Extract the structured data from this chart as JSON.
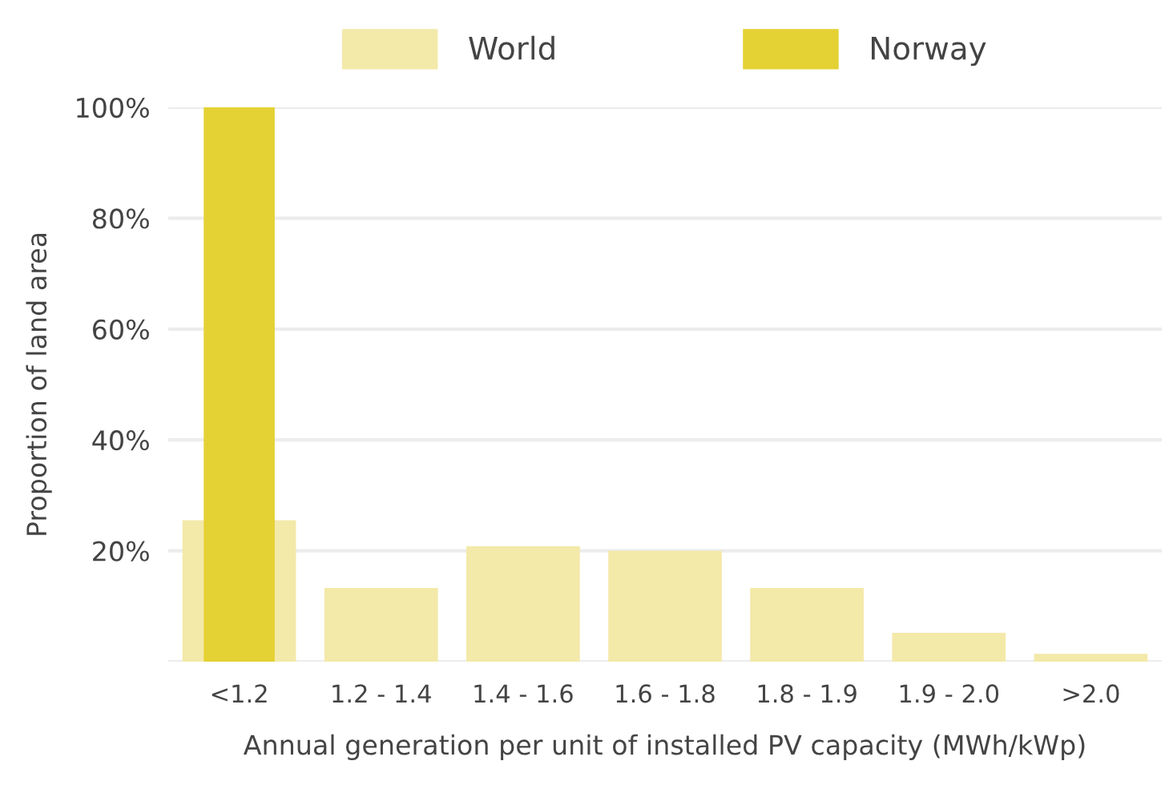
{
  "chart_data": {
    "type": "bar",
    "xlabel": "Annual generation per unit of installed PV capacity (MWh/kWp)",
    "ylabel": "Proportion of land area",
    "categories": [
      "<1.2",
      "1.2 - 1.4",
      "1.4 - 1.6",
      "1.6 - 1.8",
      "1.8 - 1.9",
      "1.9 - 2.0",
      ">2.0"
    ],
    "series": [
      {
        "name": "World",
        "color": "#f3e9a9",
        "values": [
          25.5,
          13.3,
          20.8,
          20,
          13.3,
          5.2,
          1.4
        ]
      },
      {
        "name": "Norway",
        "color": "#e4d133",
        "values": [
          100,
          null,
          null,
          null,
          null,
          null,
          null
        ]
      }
    ],
    "ylim": [
      0,
      100
    ],
    "yticks": [
      {
        "value": 0,
        "label": null
      },
      {
        "value": 20,
        "label": "20%"
      },
      {
        "value": 40,
        "label": "40%"
      },
      {
        "value": 60,
        "label": "60%"
      },
      {
        "value": 80,
        "label": "80%"
      },
      {
        "value": 100,
        "label": "100%"
      }
    ],
    "grid": "y",
    "legend": "top"
  }
}
